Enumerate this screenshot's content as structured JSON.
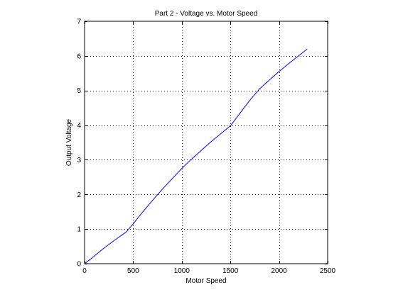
{
  "chart_data": {
    "type": "line",
    "title": "Part 2 - Voltage vs. Motor Speed",
    "xlabel": "Motor Speed",
    "ylabel": "Output Voltage",
    "xlim": [
      0,
      2500
    ],
    "ylim": [
      0,
      7
    ],
    "xticks": [
      0,
      500,
      1000,
      1500,
      2000,
      2500
    ],
    "yticks": [
      0,
      1,
      2,
      3,
      4,
      5,
      6,
      7
    ],
    "grid": true,
    "grid_style": "dotted",
    "series": [
      {
        "name": "Output Voltage",
        "color": "#0000ff",
        "x": [
          0,
          100,
          200,
          300,
          430,
          500,
          600,
          700,
          800,
          900,
          1000,
          1100,
          1200,
          1300,
          1400,
          1500,
          1600,
          1700,
          1800,
          1900,
          2000,
          2100,
          2200,
          2290
        ],
        "y": [
          0,
          0.22,
          0.45,
          0.66,
          0.92,
          1.15,
          1.5,
          1.83,
          2.15,
          2.45,
          2.75,
          3.02,
          3.27,
          3.52,
          3.75,
          3.98,
          4.35,
          4.72,
          5.05,
          5.3,
          5.55,
          5.78,
          6.0,
          6.2
        ]
      }
    ]
  }
}
